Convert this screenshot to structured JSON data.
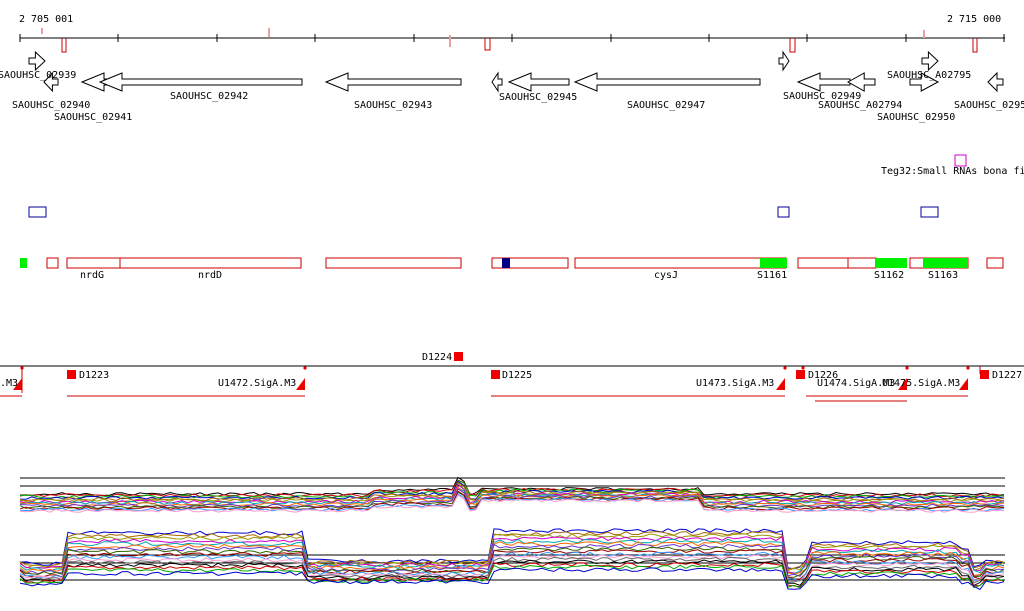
{
  "axis": {
    "start_label": "2 705 001",
    "end_label": "2 715 000"
  },
  "genes": [
    {
      "label": "SAOUHSC_02939",
      "dir": "right"
    },
    {
      "label": "SAOUHSC_02940",
      "dir": "left"
    },
    {
      "label": "SAOUHSC_02941",
      "dir": "left"
    },
    {
      "label": "SAOUHSC_02942",
      "dir": "left"
    },
    {
      "label": "SAOUHSC_02943",
      "dir": "left"
    },
    {
      "label": "SAOUHSC_02945",
      "dir": "left"
    },
    {
      "label": "SAOUHSC_02947",
      "dir": "left"
    },
    {
      "label": "SAOUHSC_02949",
      "dir": "left"
    },
    {
      "label": "SAOUHSC_A02794",
      "dir": "left"
    },
    {
      "label": "SAOUHSC_A02795",
      "dir": "right"
    },
    {
      "label": "SAOUHSC_02950",
      "dir": "right"
    },
    {
      "label": "SAOUHSC_0295",
      "dir": "left"
    }
  ],
  "small_rna": {
    "label": "Teg32:Small RNAs bona fi",
    "color": "#cc00cc"
  },
  "operons": [
    {
      "label": "nrdG"
    },
    {
      "label": "nrdD"
    },
    {
      "label": "cysJ"
    },
    {
      "label": "S1161"
    },
    {
      "label": "S1162"
    },
    {
      "label": "S1163"
    }
  ],
  "promoters": [
    {
      "label": "D1223"
    },
    {
      "label": "D1224"
    },
    {
      "label": "D1225"
    },
    {
      "label": "D1226"
    },
    {
      "label": "D1227"
    }
  ],
  "transcription_units": [
    {
      "label": ".M3"
    },
    {
      "label": "U1472.SigA.M3"
    },
    {
      "label": "U1473.SigA.M3"
    },
    {
      "label": "U1474.SigA.M3"
    },
    {
      "label": "U1475.SigA.M3"
    }
  ],
  "colors": {
    "gene_outline": "#000000",
    "operon_outline": "#cc0000",
    "highlight_green": "#00ee00",
    "dark_blue": "#000080",
    "blue_outline": "#000099",
    "promoter_red": "#ee0000",
    "tu_line": "#cc0000",
    "marker_pink": "#e8a0a0"
  }
}
